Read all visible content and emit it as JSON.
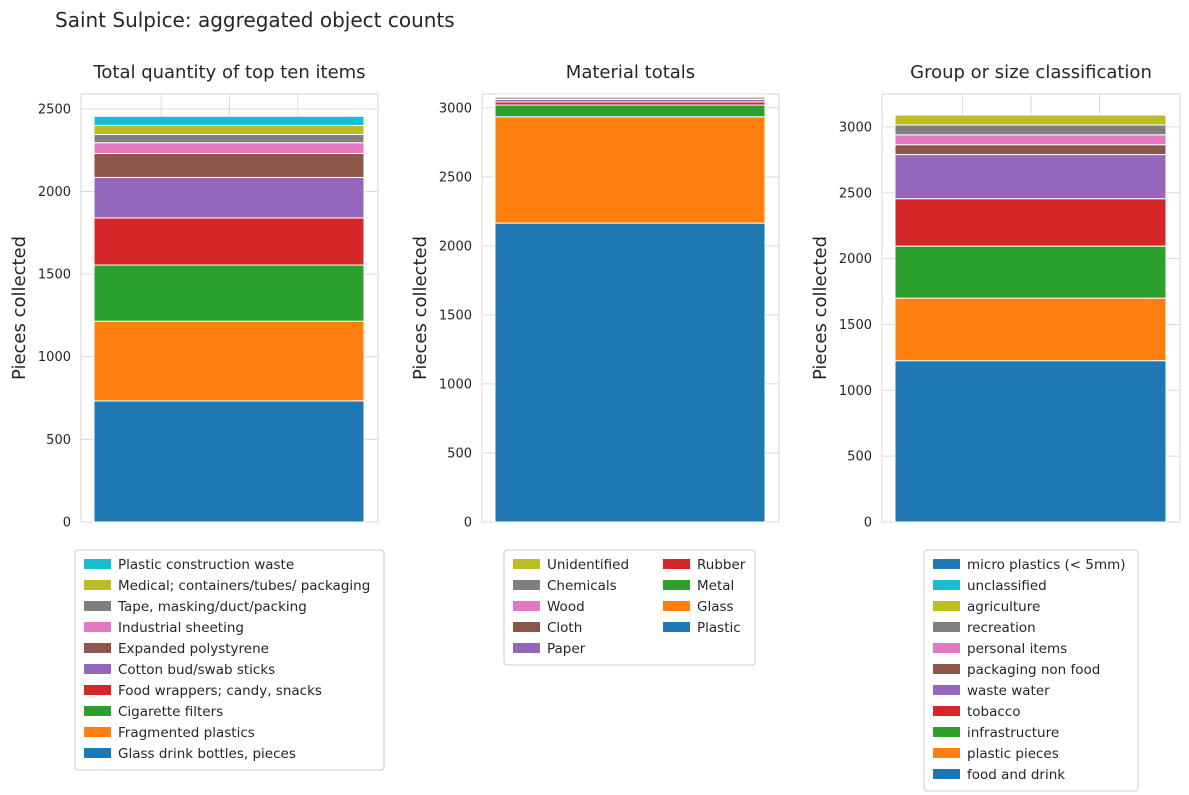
{
  "figure_title": "Saint Sulpice: aggregated object counts",
  "chart_data": [
    {
      "type": "bar",
      "stacked": true,
      "title": "Total quantity of top ten items",
      "ylabel": "Pieces collected",
      "xlabel": "",
      "ylim": [
        0,
        2590
      ],
      "yticks": [
        0,
        500,
        1000,
        1500,
        2000,
        2500
      ],
      "grid": true,
      "legend": "below",
      "legend_columns": 1,
      "series": [
        {
          "name": "Glass drink bottles, pieces",
          "value": 733,
          "color": "#1f77b4"
        },
        {
          "name": "Fragmented plastics",
          "value": 482,
          "color": "#ff7f0e"
        },
        {
          "name": "Cigarette filters",
          "value": 340,
          "color": "#2ca02c"
        },
        {
          "name": "Food wrappers; candy, snacks",
          "value": 285,
          "color": "#d62728"
        },
        {
          "name": "Cotton bud/swab sticks",
          "value": 245,
          "color": "#9467bd"
        },
        {
          "name": "Expanded polystyrene",
          "value": 145,
          "color": "#8c564b"
        },
        {
          "name": "Industrial sheeting",
          "value": 65,
          "color": "#e377c2"
        },
        {
          "name": "Tape, masking/duct/packing",
          "value": 50,
          "color": "#7f7f7f"
        },
        {
          "name": "Medical; containers/tubes/ packaging",
          "value": 55,
          "color": "#bcbd22"
        },
        {
          "name": "Plastic construction waste",
          "value": 55,
          "color": "#17becf"
        }
      ]
    },
    {
      "type": "bar",
      "stacked": true,
      "title": "Material totals",
      "ylabel": "Pieces collected",
      "xlabel": "",
      "ylim": [
        0,
        3100
      ],
      "yticks": [
        0,
        500,
        1000,
        1500,
        2000,
        2500,
        3000
      ],
      "grid": true,
      "legend": "below",
      "legend_columns": 2,
      "series": [
        {
          "name": "Plastic",
          "value": 2165,
          "color": "#1f77b4"
        },
        {
          "name": "Glass",
          "value": 770,
          "color": "#ff7f0e"
        },
        {
          "name": "Metal",
          "value": 85,
          "color": "#2ca02c"
        },
        {
          "name": "Rubber",
          "value": 22,
          "color": "#d62728"
        },
        {
          "name": "Paper",
          "value": 18,
          "color": "#9467bd"
        },
        {
          "name": "Cloth",
          "value": 12,
          "color": "#8c564b"
        },
        {
          "name": "Wood",
          "value": 10,
          "color": "#e377c2"
        },
        {
          "name": "Chemicals",
          "value": 8,
          "color": "#7f7f7f"
        },
        {
          "name": "Unidentified",
          "value": 5,
          "color": "#bcbd22"
        }
      ]
    },
    {
      "type": "bar",
      "stacked": true,
      "title": "Group or size classification",
      "ylabel": "Pieces collected",
      "xlabel": "",
      "ylim": [
        0,
        3250
      ],
      "yticks": [
        0,
        500,
        1000,
        1500,
        2000,
        2500,
        3000
      ],
      "grid": true,
      "legend": "below",
      "legend_columns": 1,
      "series": [
        {
          "name": "food and drink",
          "value": 1225,
          "color": "#1f77b4"
        },
        {
          "name": "plastic pieces",
          "value": 475,
          "color": "#ff7f0e"
        },
        {
          "name": "infrastructure",
          "value": 395,
          "color": "#2ca02c"
        },
        {
          "name": "tobacco",
          "value": 360,
          "color": "#d62728"
        },
        {
          "name": "waste water",
          "value": 335,
          "color": "#9467bd"
        },
        {
          "name": "packaging non food",
          "value": 75,
          "color": "#8c564b"
        },
        {
          "name": "personal items",
          "value": 75,
          "color": "#e377c2"
        },
        {
          "name": "recreation",
          "value": 75,
          "color": "#7f7f7f"
        },
        {
          "name": "agriculture",
          "value": 75,
          "color": "#bcbd22"
        },
        {
          "name": "unclassified",
          "value": 0,
          "color": "#17becf"
        },
        {
          "name": "micro plastics (< 5mm)",
          "value": 0,
          "color": "#1f77b4"
        }
      ]
    }
  ]
}
